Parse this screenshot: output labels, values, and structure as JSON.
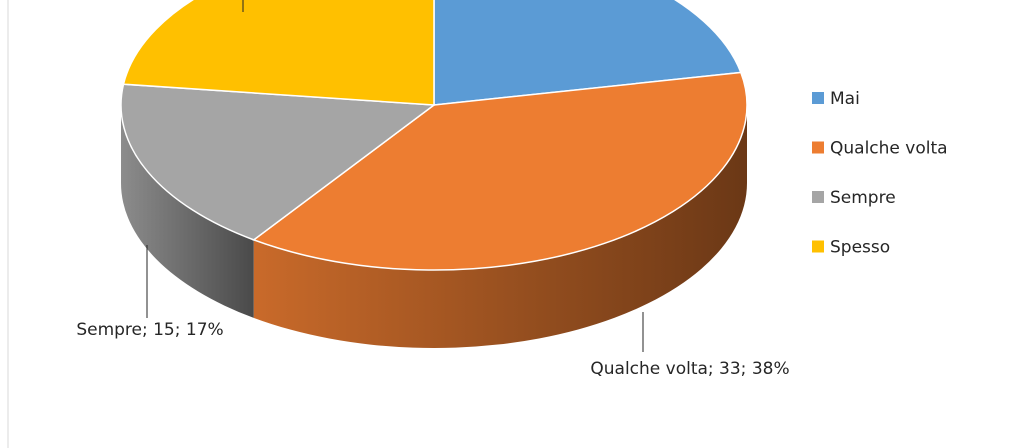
{
  "chart_data": {
    "type": "pie",
    "categories": [
      "Mai",
      "Qualche volta",
      "Sempre",
      "Spesso"
    ],
    "values": [
      19,
      33,
      15,
      20
    ],
    "value_labels": [
      null,
      "Qualche volta; 33; 38%",
      "Sempre; 15; 17%",
      null
    ],
    "colors": [
      "#5b9bd5",
      "#ed7d31",
      "#a5a5a5",
      "#ffc000"
    ],
    "legend": "right"
  }
}
